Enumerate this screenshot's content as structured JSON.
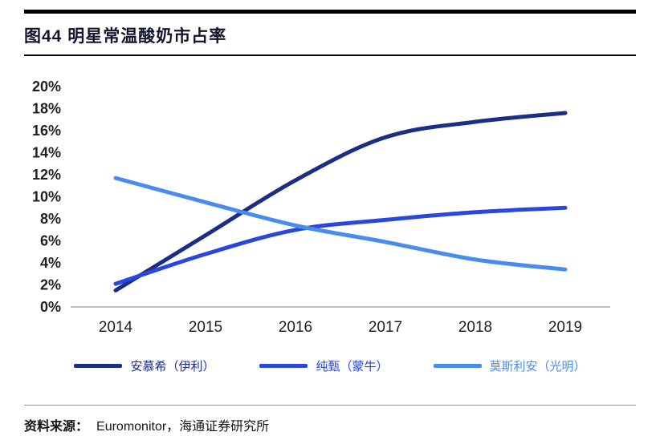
{
  "header": {
    "title": "图44 明星常温酸奶市占率"
  },
  "chart_data": {
    "type": "line",
    "title": "图44 明星常温酸奶市占率",
    "x": [
      "2014",
      "2015",
      "2016",
      "2017",
      "2018",
      "2019"
    ],
    "series": [
      {
        "name": "安慕希（伊利）",
        "color": "#1c2d85",
        "values": [
          1.5,
          6.5,
          11.5,
          15.4,
          16.8,
          17.6
        ]
      },
      {
        "name": "纯甄（蒙牛）",
        "color": "#2947dd",
        "values": [
          2.1,
          4.8,
          7.0,
          7.9,
          8.6,
          9.0
        ]
      },
      {
        "name": "莫斯利安（光明）",
        "color": "#4a8cee",
        "values": [
          11.7,
          9.5,
          7.4,
          5.9,
          4.3,
          3.4
        ]
      }
    ],
    "ylim": [
      0,
      20
    ],
    "ytick_step": 2,
    "ytick_suffix": "%",
    "grid": false,
    "legend_position": "bottom",
    "axis_color": "#9b9b9b",
    "tick_label_color": "#1f1f1f"
  },
  "footer": {
    "source_label": "资料来源：",
    "source_text": "Euromonitor，海通证券研究所"
  }
}
